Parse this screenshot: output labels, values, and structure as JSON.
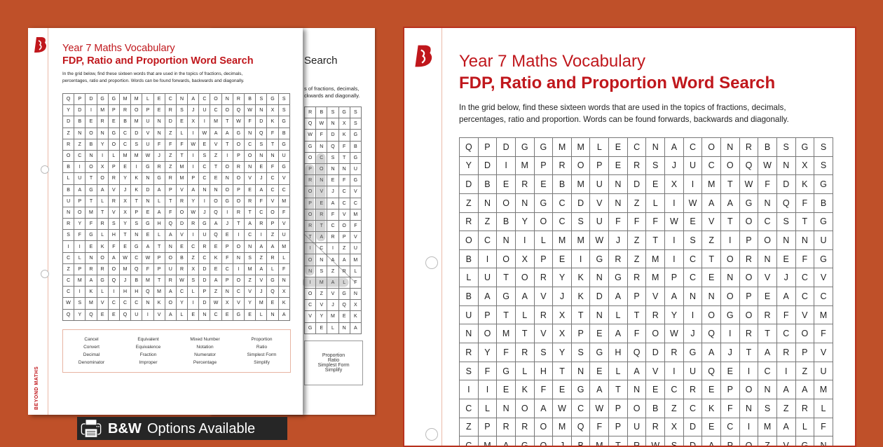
{
  "worksheet": {
    "title": "Year 7 Maths Vocabulary",
    "subtitle": "FDP, Ratio and Proportion Word Search",
    "instructions_line1": "In the grid below, find these sixteen words that are used in the topics of fractions, decimals,",
    "instructions_line2": "percentages, ratio and proportion. Words can be found forwards, backwards and diagonally.",
    "grid_rows": [
      "QPDGGMMLECNACONRBSGS",
      "YDIMPROPERSJUCOQWNXS",
      "DBEREBMUNDEXIMTWFDKG",
      "ZNONGCDVNZLIWAAGNQFB",
      "RZBYOCSUFFFWEVTOCSTG",
      "OCNILMMWJZTISZIPONNU",
      "BIOXPEIGRZMICTORNEFG",
      "LUTORYKNGRMPCENOVJCV",
      "BAGAVJKDAPVANNOPEACC",
      "UPTLRXTNLTRYIOGORFVM",
      "NOMTVXPEAFOWJQIRTCOF",
      "RYFRSYSGHQDRGAJTARPV",
      "SFGLHTNELAVIUQEICIZU",
      "IIEKFEGATNECREPONAAM",
      "CLNOAWCWPOBZCKFNSZRL",
      "ZPRROMQFPURXDECIMALF",
      "CMAGQJBMTRWSDAPOZVGN",
      "CIKLIHHQMACLPZNCVJQX",
      "WSMVCCCNKOYIDWXVYMEK",
      "QYQEEQUIVALENCEGELNA"
    ],
    "word_list": [
      "Cancel",
      "Equivalent",
      "Mixed Number",
      "Proportion",
      "Convert",
      "Equivalence",
      "Notation",
      "Ratio",
      "Decimal",
      "Fraction",
      "Numerator",
      "Simplest Form",
      "Denominator",
      "Improper",
      "Percentage",
      "Simplify"
    ]
  },
  "answer_page": {
    "title_fragment": "Search",
    "instr_fragment1": "s of fractions, decimals,",
    "instr_fragment2": "ckwards and diagonally.",
    "word_list": [
      "Proportion",
      "Ratio",
      "Simplest Form",
      "Simplify"
    ]
  },
  "brand": {
    "logo_text": "BEYOND MATHS",
    "accent": "#c0171c",
    "background": "#bf5029"
  },
  "banner": {
    "line1": "B&W",
    "line2": "Options Available",
    "icon": "printer-icon"
  }
}
